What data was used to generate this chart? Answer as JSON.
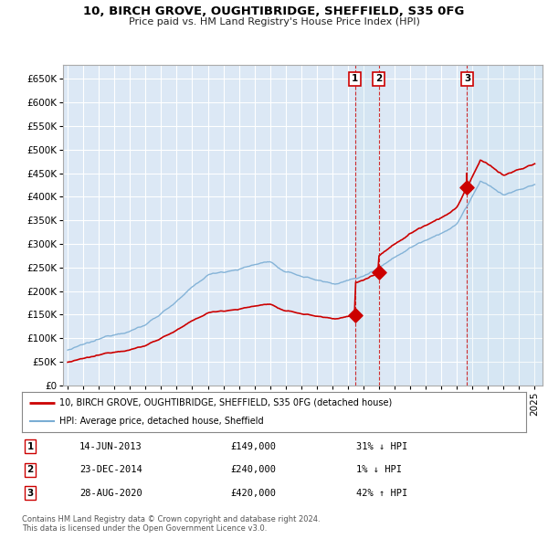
{
  "title": "10, BIRCH GROVE, OUGHTIBRIDGE, SHEFFIELD, S35 0FG",
  "subtitle": "Price paid vs. HM Land Registry's House Price Index (HPI)",
  "ylim": [
    0,
    680000
  ],
  "yticks": [
    0,
    50000,
    100000,
    150000,
    200000,
    250000,
    300000,
    350000,
    400000,
    450000,
    500000,
    550000,
    600000,
    650000
  ],
  "xlim_start": 1994.7,
  "xlim_end": 2025.5,
  "background_color": "#dce8f5",
  "grid_color": "#ffffff",
  "red_color": "#cc0000",
  "blue_color": "#7aadd4",
  "sale_dates": [
    2013.45,
    2014.98,
    2020.66
  ],
  "sale_prices": [
    149000,
    240000,
    420000
  ],
  "sale_labels": [
    "1",
    "2",
    "3"
  ],
  "legend_line1": "10, BIRCH GROVE, OUGHTIBRIDGE, SHEFFIELD, S35 0FG (detached house)",
  "legend_line2": "HPI: Average price, detached house, Sheffield",
  "table_rows": [
    [
      "1",
      "14-JUN-2013",
      "£149,000",
      "31% ↓ HPI"
    ],
    [
      "2",
      "23-DEC-2014",
      "£240,000",
      "1% ↓ HPI"
    ],
    [
      "3",
      "28-AUG-2020",
      "£420,000",
      "42% ↑ HPI"
    ]
  ],
  "footer": "Contains HM Land Registry data © Crown copyright and database right 2024.\nThis data is licensed under the Open Government Licence v3.0."
}
